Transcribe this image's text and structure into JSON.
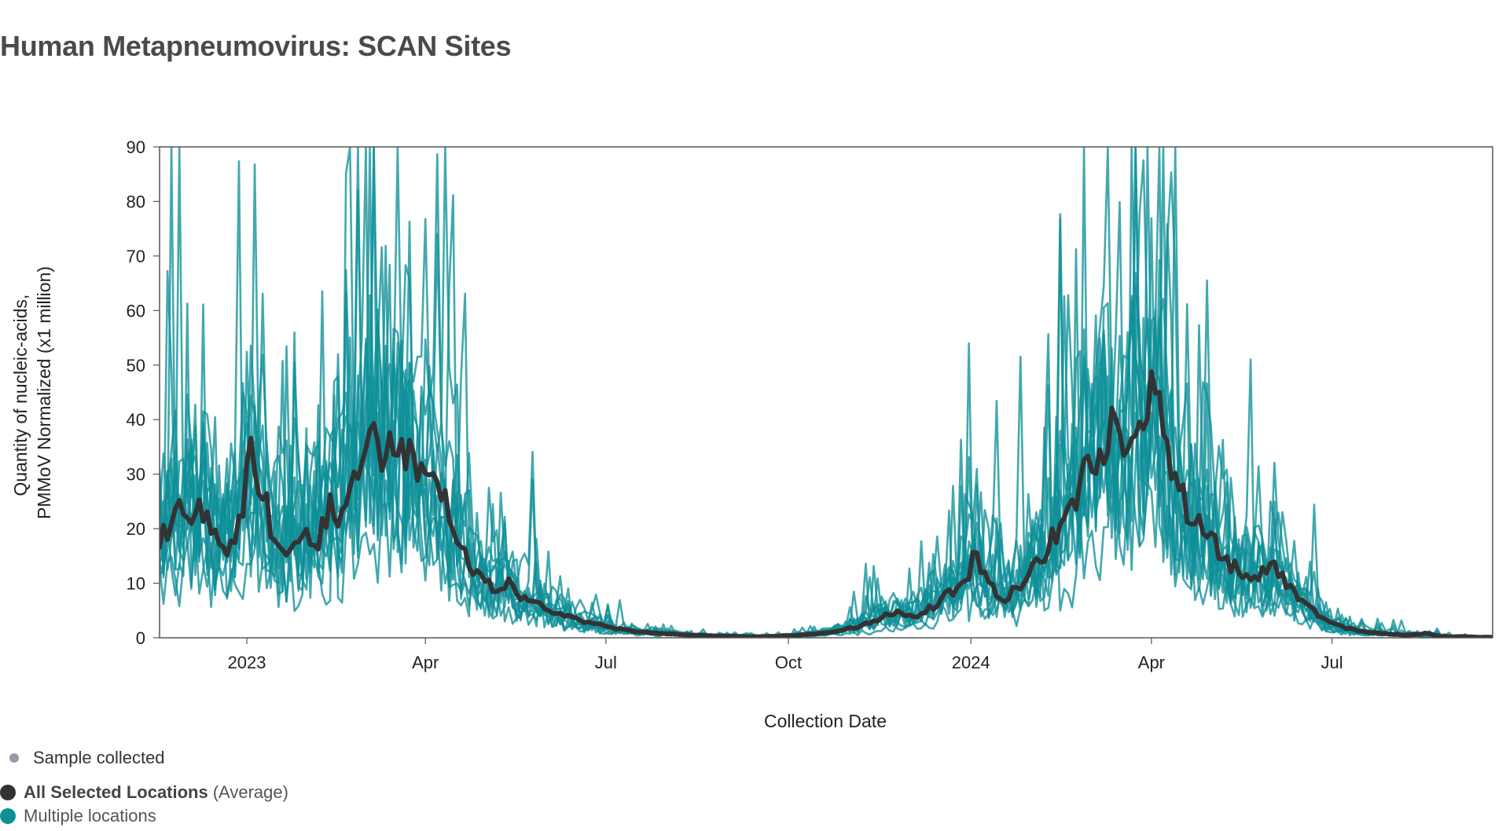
{
  "title": "Human Metapneumovirus: SCAN Sites",
  "legend": {
    "sample_label": "Sample collected",
    "average_label": "All Selected Locations",
    "average_suffix": "(Average)",
    "multiple_label": "Multiple locations"
  },
  "colors": {
    "average": "#333333",
    "locations": "#0e8f98",
    "sample_dot": "#9a9aa6",
    "frame": "#555555"
  },
  "chart_data": {
    "type": "line",
    "xlabel": "Collection Date",
    "ylabel": [
      "Quantity of nucleic-acids,",
      "PMMoV Normalized (x1 million)"
    ],
    "ylim": [
      0,
      90
    ],
    "yticks": [
      0,
      10,
      20,
      30,
      40,
      50,
      60,
      70,
      80,
      90
    ],
    "xrange": [
      "2022-11-18",
      "2024-09-20"
    ],
    "xticks": [
      {
        "date": "2023-01-01",
        "label": "2023"
      },
      {
        "date": "2023-04-01",
        "label": "Apr"
      },
      {
        "date": "2023-07-01",
        "label": "Jul"
      },
      {
        "date": "2023-10-01",
        "label": "Oct"
      },
      {
        "date": "2024-01-01",
        "label": "2024"
      },
      {
        "date": "2024-04-01",
        "label": "Apr"
      },
      {
        "date": "2024-07-01",
        "label": "Jul"
      }
    ],
    "series": [
      {
        "name": "All Selected Locations",
        "color": "#333333",
        "points": [
          [
            "2022-11-18",
            18
          ],
          [
            "2022-11-25",
            21
          ],
          [
            "2022-12-01",
            24
          ],
          [
            "2022-12-08",
            23
          ],
          [
            "2022-12-15",
            20
          ],
          [
            "2022-12-22",
            15
          ],
          [
            "2022-12-29",
            22
          ],
          [
            "2023-01-03",
            33
          ],
          [
            "2023-01-08",
            28
          ],
          [
            "2023-01-15",
            18
          ],
          [
            "2023-01-22",
            16
          ],
          [
            "2023-01-29",
            20
          ],
          [
            "2023-02-05",
            17
          ],
          [
            "2023-02-12",
            24
          ],
          [
            "2023-02-19",
            22
          ],
          [
            "2023-02-26",
            30
          ],
          [
            "2023-03-05",
            37
          ],
          [
            "2023-03-12",
            33
          ],
          [
            "2023-03-19",
            36
          ],
          [
            "2023-03-26",
            31
          ],
          [
            "2023-04-02",
            30
          ],
          [
            "2023-04-09",
            28
          ],
          [
            "2023-04-16",
            20
          ],
          [
            "2023-04-23",
            13
          ],
          [
            "2023-04-30",
            11
          ],
          [
            "2023-05-07",
            8
          ],
          [
            "2023-05-14",
            10
          ],
          [
            "2023-05-21",
            7
          ],
          [
            "2023-05-28",
            6
          ],
          [
            "2023-06-04",
            5
          ],
          [
            "2023-06-11",
            4
          ],
          [
            "2023-06-18",
            3
          ],
          [
            "2023-06-25",
            2.5
          ],
          [
            "2023-07-02",
            2
          ],
          [
            "2023-07-09",
            1.5
          ],
          [
            "2023-07-16",
            1.2
          ],
          [
            "2023-07-23",
            1
          ],
          [
            "2023-07-30",
            0.8
          ],
          [
            "2023-08-06",
            0.6
          ],
          [
            "2023-08-13",
            0.5
          ],
          [
            "2023-08-20",
            0.4
          ],
          [
            "2023-08-27",
            0.3
          ],
          [
            "2023-09-03",
            0.3
          ],
          [
            "2023-09-10",
            0.2
          ],
          [
            "2023-09-17",
            0.2
          ],
          [
            "2023-09-24",
            0.3
          ],
          [
            "2023-10-01",
            0.4
          ],
          [
            "2023-10-08",
            0.5
          ],
          [
            "2023-10-15",
            0.8
          ],
          [
            "2023-10-22",
            1
          ],
          [
            "2023-10-29",
            1.5
          ],
          [
            "2023-11-05",
            2
          ],
          [
            "2023-11-12",
            3
          ],
          [
            "2023-11-19",
            4
          ],
          [
            "2023-11-26",
            5
          ],
          [
            "2023-12-03",
            3.5
          ],
          [
            "2023-12-10",
            5
          ],
          [
            "2023-12-17",
            7
          ],
          [
            "2023-12-24",
            9
          ],
          [
            "2023-12-31",
            11
          ],
          [
            "2024-01-03",
            16
          ],
          [
            "2024-01-10",
            10
          ],
          [
            "2024-01-17",
            7
          ],
          [
            "2024-01-24",
            9
          ],
          [
            "2024-01-31",
            12
          ],
          [
            "2024-02-07",
            15
          ],
          [
            "2024-02-14",
            20
          ],
          [
            "2024-02-21",
            25
          ],
          [
            "2024-02-28",
            30
          ],
          [
            "2024-03-06",
            34
          ],
          [
            "2024-03-13",
            39
          ],
          [
            "2024-03-20",
            33
          ],
          [
            "2024-03-27",
            37
          ],
          [
            "2024-04-02",
            52
          ],
          [
            "2024-04-06",
            40
          ],
          [
            "2024-04-13",
            28
          ],
          [
            "2024-04-20",
            23
          ],
          [
            "2024-04-27",
            21
          ],
          [
            "2024-05-04",
            17
          ],
          [
            "2024-05-11",
            13
          ],
          [
            "2024-05-18",
            12
          ],
          [
            "2024-05-25",
            11
          ],
          [
            "2024-06-01",
            13
          ],
          [
            "2024-06-08",
            10
          ],
          [
            "2024-06-15",
            7
          ],
          [
            "2024-06-22",
            5
          ],
          [
            "2024-06-29",
            3
          ],
          [
            "2024-07-06",
            2
          ],
          [
            "2024-07-13",
            1.5
          ],
          [
            "2024-07-20",
            1
          ],
          [
            "2024-07-27",
            0.8
          ],
          [
            "2024-08-03",
            0.6
          ],
          [
            "2024-08-10",
            0.5
          ],
          [
            "2024-08-17",
            0.8
          ],
          [
            "2024-08-24",
            0.3
          ],
          [
            "2024-08-31",
            0.2
          ],
          [
            "2024-09-07",
            0.2
          ],
          [
            "2024-09-14",
            0.1
          ],
          [
            "2024-09-20",
            0.1
          ]
        ]
      }
    ],
    "location_series_count": 12
  }
}
